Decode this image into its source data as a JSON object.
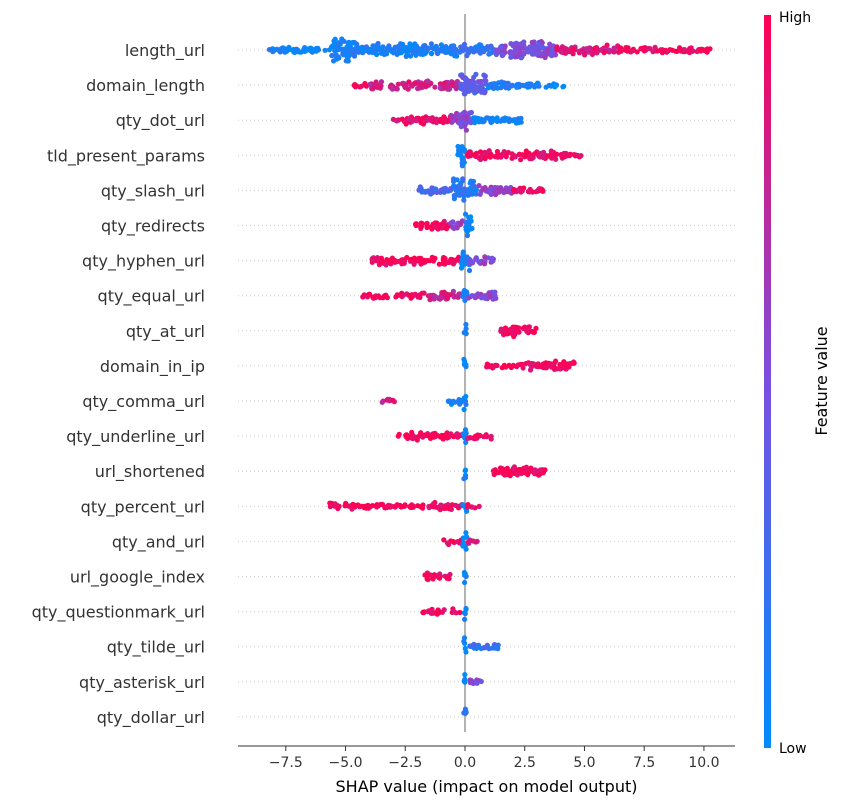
{
  "chart_data": {
    "type": "scatter",
    "subtype": "shap-beeswarm",
    "xlabel": "SHAP value (impact on model output)",
    "xlim": [
      -9.5,
      11.3
    ],
    "xticks": [
      -7.5,
      -5.0,
      -2.5,
      0.0,
      2.5,
      5.0,
      7.5,
      10.0
    ],
    "xtick_labels": [
      "−7.5",
      "−5.0",
      "−2.5",
      "0.0",
      "2.5",
      "5.0",
      "7.5",
      "10.0"
    ],
    "colorbar": {
      "label": "Feature value",
      "high": "High",
      "low": "Low",
      "low_color": "#008bfb",
      "high_color": "#ff0052"
    },
    "features": [
      {
        "name": "length_url",
        "min": -8.3,
        "max": 10.3,
        "clusters": [
          {
            "from": -8.3,
            "to": -5.6,
            "color": 0.05,
            "thick": 0.15
          },
          {
            "from": -5.6,
            "to": -4.6,
            "color": 0.08,
            "thick": 1.0
          },
          {
            "from": -4.6,
            "to": -0.3,
            "color": 0.1,
            "thick": 0.45
          },
          {
            "from": -0.3,
            "to": 1.2,
            "color": 0.2,
            "thick": 0.4
          },
          {
            "from": 1.2,
            "to": 3.8,
            "color": 0.5,
            "thick": 0.7
          },
          {
            "from": 3.8,
            "to": 6.5,
            "color": 0.85,
            "thick": 0.3
          },
          {
            "from": 6.5,
            "to": 10.3,
            "color": 0.97,
            "thick": 0.1
          }
        ]
      },
      {
        "name": "domain_length",
        "min": -4.7,
        "max": 4.2,
        "clusters": [
          {
            "from": -4.7,
            "to": -4.0,
            "color": 0.98,
            "thick": 0.05
          },
          {
            "from": -4.0,
            "to": -0.2,
            "color": 0.8,
            "thick": 0.3
          },
          {
            "from": -0.2,
            "to": 0.9,
            "color": 0.4,
            "thick": 0.95
          },
          {
            "from": 0.9,
            "to": 2.5,
            "color": 0.12,
            "thick": 0.2
          },
          {
            "from": 2.5,
            "to": 4.2,
            "color": 0.05,
            "thick": 0.06
          }
        ]
      },
      {
        "name": "qty_dot_url",
        "min": -3.0,
        "max": 2.4,
        "clusters": [
          {
            "from": -3.0,
            "to": -0.6,
            "color": 0.92,
            "thick": 0.2
          },
          {
            "from": -0.6,
            "to": -0.2,
            "color": 0.6,
            "thick": 0.5
          },
          {
            "from": -0.2,
            "to": 0.3,
            "color": 0.5,
            "thick": 0.9
          },
          {
            "from": 0.3,
            "to": 2.4,
            "color": 0.05,
            "thick": 0.2
          }
        ]
      },
      {
        "name": "tld_present_params",
        "min": -0.3,
        "max": 4.9,
        "clusters": [
          {
            "from": -0.3,
            "to": 0.0,
            "color": 0.05,
            "thick": 1.0
          },
          {
            "from": 0.1,
            "to": 3.8,
            "color": 0.95,
            "thick": 0.3
          },
          {
            "from": 3.8,
            "to": 4.9,
            "color": 0.98,
            "thick": 0.1
          }
        ]
      },
      {
        "name": "qty_slash_url",
        "min": -2.0,
        "max": 3.4,
        "clusters": [
          {
            "from": -2.0,
            "to": -0.5,
            "color": 0.3,
            "thick": 0.2
          },
          {
            "from": -0.5,
            "to": 0.5,
            "color": 0.15,
            "thick": 0.9
          },
          {
            "from": 0.5,
            "to": 2.0,
            "color": 0.6,
            "thick": 0.3
          },
          {
            "from": 2.0,
            "to": 3.4,
            "color": 0.95,
            "thick": 0.15
          }
        ]
      },
      {
        "name": "qty_redirects",
        "min": -2.1,
        "max": 0.3,
        "clusters": [
          {
            "from": -2.1,
            "to": -0.6,
            "color": 0.95,
            "thick": 0.25
          },
          {
            "from": -0.6,
            "to": -0.1,
            "color": 0.6,
            "thick": 0.4
          },
          {
            "from": 0.0,
            "to": 0.3,
            "color": 0.05,
            "thick": 0.9
          }
        ]
      },
      {
        "name": "qty_hyphen_url",
        "min": -3.9,
        "max": 1.2,
        "clusters": [
          {
            "from": -3.9,
            "to": -0.2,
            "color": 0.97,
            "thick": 0.25
          },
          {
            "from": -0.2,
            "to": 0.2,
            "color": 0.05,
            "thick": 0.8
          },
          {
            "from": 0.2,
            "to": 1.2,
            "color": 0.55,
            "thick": 0.2
          }
        ]
      },
      {
        "name": "qty_equal_url",
        "min": -4.3,
        "max": 1.4,
        "clusters": [
          {
            "from": -4.3,
            "to": -1.5,
            "color": 0.98,
            "thick": 0.08
          },
          {
            "from": -1.5,
            "to": -0.2,
            "color": 0.8,
            "thick": 0.25
          },
          {
            "from": -0.1,
            "to": 0.1,
            "color": 0.05,
            "thick": 0.7
          },
          {
            "from": 0.1,
            "to": 1.4,
            "color": 0.55,
            "thick": 0.2
          }
        ]
      },
      {
        "name": "qty_at_url",
        "min": -0.05,
        "max": 3.1,
        "clusters": [
          {
            "from": -0.05,
            "to": 0.05,
            "color": 0.05,
            "thick": 0.7
          },
          {
            "from": 1.5,
            "to": 3.1,
            "color": 0.97,
            "thick": 0.35
          }
        ]
      },
      {
        "name": "domain_in_ip",
        "min": -0.05,
        "max": 4.6,
        "clusters": [
          {
            "from": -0.05,
            "to": 0.05,
            "color": 0.05,
            "thick": 0.7
          },
          {
            "from": 0.9,
            "to": 2.5,
            "color": 0.98,
            "thick": 0.05
          },
          {
            "from": 2.5,
            "to": 4.6,
            "color": 0.95,
            "thick": 0.3
          }
        ]
      },
      {
        "name": "qty_comma_url",
        "min": -3.5,
        "max": 0.1,
        "clusters": [
          {
            "from": -3.5,
            "to": -2.8,
            "color": 0.85,
            "thick": 0.05
          },
          {
            "from": -0.8,
            "to": -0.1,
            "color": 0.15,
            "thick": 0.15
          },
          {
            "from": -0.05,
            "to": 0.1,
            "color": 0.05,
            "thick": 0.7
          }
        ]
      },
      {
        "name": "qty_underline_url",
        "min": -2.8,
        "max": 1.1,
        "clusters": [
          {
            "from": -2.8,
            "to": -0.1,
            "color": 0.97,
            "thick": 0.2
          },
          {
            "from": -0.1,
            "to": 0.1,
            "color": 0.05,
            "thick": 0.7
          },
          {
            "from": 0.1,
            "to": 1.1,
            "color": 0.9,
            "thick": 0.1
          }
        ]
      },
      {
        "name": "url_shortened",
        "min": -0.05,
        "max": 3.4,
        "clusters": [
          {
            "from": -0.05,
            "to": 0.05,
            "color": 0.05,
            "thick": 0.7
          },
          {
            "from": 1.1,
            "to": 3.4,
            "color": 0.97,
            "thick": 0.3
          }
        ]
      },
      {
        "name": "qty_percent_url",
        "min": -5.7,
        "max": 0.6,
        "clusters": [
          {
            "from": -5.7,
            "to": -4.3,
            "color": 0.98,
            "thick": 0.12
          },
          {
            "from": -4.3,
            "to": -1.5,
            "color": 0.98,
            "thick": 0.05
          },
          {
            "from": -1.5,
            "to": -0.1,
            "color": 0.95,
            "thick": 0.2
          },
          {
            "from": -0.1,
            "to": 0.1,
            "color": 0.05,
            "thick": 0.6
          },
          {
            "from": 0.1,
            "to": 0.6,
            "color": 0.95,
            "thick": 0.05
          }
        ]
      },
      {
        "name": "qty_and_url",
        "min": -0.9,
        "max": 0.6,
        "clusters": [
          {
            "from": -0.9,
            "to": -0.1,
            "color": 0.97,
            "thick": 0.15
          },
          {
            "from": -0.1,
            "to": 0.1,
            "color": 0.05,
            "thick": 0.7
          },
          {
            "from": 0.1,
            "to": 0.6,
            "color": 0.9,
            "thick": 0.05
          }
        ]
      },
      {
        "name": "url_google_index",
        "min": -1.7,
        "max": 0.05,
        "clusters": [
          {
            "from": -1.7,
            "to": -0.6,
            "color": 0.97,
            "thick": 0.15
          },
          {
            "from": -0.05,
            "to": 0.05,
            "color": 0.05,
            "thick": 0.7
          }
        ]
      },
      {
        "name": "qty_questionmark_url",
        "min": -1.8,
        "max": 0.05,
        "clusters": [
          {
            "from": -1.8,
            "to": -0.2,
            "color": 0.97,
            "thick": 0.12
          },
          {
            "from": -0.05,
            "to": 0.05,
            "color": 0.05,
            "thick": 0.7
          }
        ]
      },
      {
        "name": "qty_tilde_url",
        "min": -0.05,
        "max": 1.4,
        "clusters": [
          {
            "from": -0.05,
            "to": 0.05,
            "color": 0.05,
            "thick": 0.7
          },
          {
            "from": 0.1,
            "to": 1.4,
            "color": 0.2,
            "thick": 0.12
          }
        ]
      },
      {
        "name": "qty_asterisk_url",
        "min": -0.05,
        "max": 0.8,
        "clusters": [
          {
            "from": -0.05,
            "to": 0.05,
            "color": 0.05,
            "thick": 0.7
          },
          {
            "from": 0.2,
            "to": 0.8,
            "color": 0.5,
            "thick": 0.08
          }
        ]
      },
      {
        "name": "qty_dollar_url",
        "min": -0.05,
        "max": 0.05,
        "clusters": [
          {
            "from": -0.05,
            "to": 0.05,
            "color": 0.05,
            "thick": 0.7
          }
        ]
      }
    ]
  }
}
